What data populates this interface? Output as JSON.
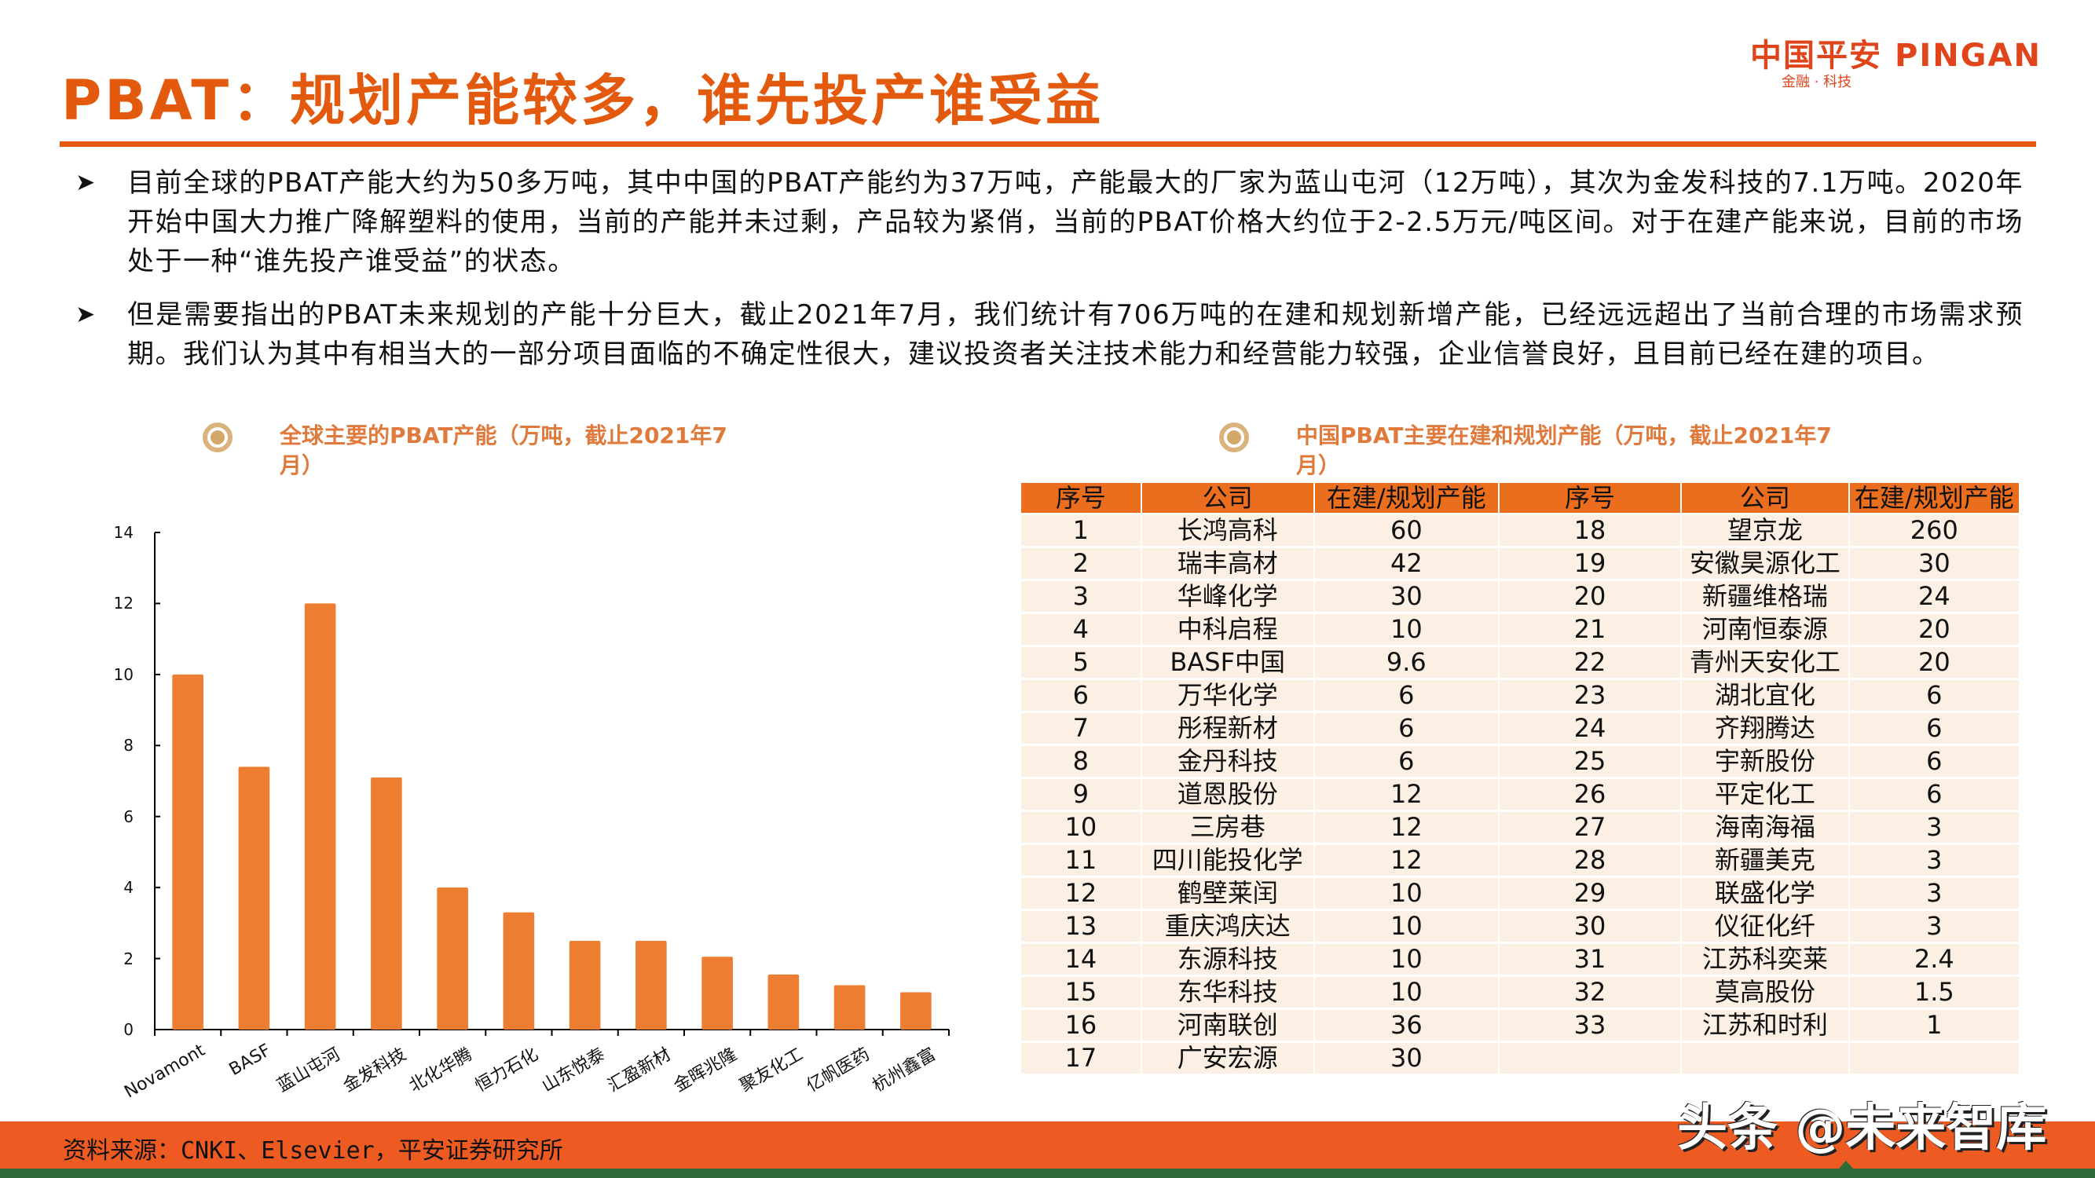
{
  "header": {
    "title": "PBAT：规划产能较多，谁先投产谁受益",
    "logo_cn": "中国平安",
    "logo_en": "PINGAN",
    "logo_sub": "金融 · 科技"
  },
  "bullets": [
    {
      "icon": "arrow-bullet-icon",
      "text": "目前全球的PBAT产能大约为50多万吨，其中中国的PBAT产能约为37万吨，产能最大的厂家为蓝山屯河（12万吨），其次为金发科技的7.1万吨。2020年开始中国大力推广降解塑料的使用，当前的产能并未过剩，产品较为紧俏，当前的PBAT价格大约位于2-2.5万元/吨区间。对于在建产能来说，目前的市场处于一种“谁先投产谁受益”的状态。"
    },
    {
      "icon": "arrow-bullet-icon",
      "text": "但是需要指出的PBAT未来规划的产能十分巨大，截止2021年7月，我们统计有706万吨的在建和规划新增产能，已经远远超出了当前合理的市场需求预期。我们认为其中有相当大的一部分项目面临的不确定性很大，建议投资者关注技术能力和经营能力较强，企业信誉良好，且目前已经在建的项目。"
    }
  ],
  "left_section": {
    "title_line1": "全球主要的PBAT产能（万吨，截止2021年7",
    "title_line2": "月）"
  },
  "right_section": {
    "title_line1": "中国PBAT主要在建和规划产能（万吨，截止2021年7",
    "title_line2": "月）"
  },
  "chart_data": [
    {
      "type": "bar",
      "title": "全球主要的PBAT产能（万吨，截止2021年7月）",
      "xlabel": "",
      "ylabel": "",
      "categories": [
        "Novamont",
        "BASF",
        "蓝山屯河",
        "金发科技",
        "北化华腾",
        "恒力石化",
        "山东悦泰",
        "汇盈新材",
        "金晖兆隆",
        "聚友化工",
        "亿帆医药",
        "杭州鑫富"
      ],
      "values": [
        10,
        7.4,
        12,
        7.1,
        4,
        3.3,
        2.5,
        2.5,
        2.05,
        1.55,
        1.25,
        1.05
      ],
      "yticks": [
        0,
        2,
        4,
        6,
        8,
        10,
        12,
        14
      ],
      "ylim": [
        0,
        14
      ],
      "grid": false,
      "legend": "none",
      "color": "#ED7D31"
    },
    {
      "type": "table",
      "title": "中国PBAT主要在建和规划产能（万吨，截止2021年7月）",
      "columns": [
        "序号",
        "公司",
        "在建/规划产能",
        "序号",
        "公司",
        "在建/规划产能"
      ],
      "rows": [
        [
          "1",
          "长鸿高科",
          "60",
          "18",
          "望京龙",
          "260"
        ],
        [
          "2",
          "瑞丰高材",
          "42",
          "19",
          "安徽昊源化工",
          "30"
        ],
        [
          "3",
          "华峰化学",
          "30",
          "20",
          "新疆维格瑞",
          "24"
        ],
        [
          "4",
          "中科启程",
          "10",
          "21",
          "河南恒泰源",
          "20"
        ],
        [
          "5",
          "BASF中国",
          "9.6",
          "22",
          "青州天安化工",
          "20"
        ],
        [
          "6",
          "万华化学",
          "6",
          "23",
          "湖北宜化",
          "6"
        ],
        [
          "7",
          "彤程新材",
          "6",
          "24",
          "齐翔腾达",
          "6"
        ],
        [
          "8",
          "金丹科技",
          "6",
          "25",
          "宇新股份",
          "6"
        ],
        [
          "9",
          "道恩股份",
          "12",
          "26",
          "平定化工",
          "6"
        ],
        [
          "10",
          "三房巷",
          "12",
          "27",
          "海南海福",
          "3"
        ],
        [
          "11",
          "四川能投化学",
          "12",
          "28",
          "新疆美克",
          "3"
        ],
        [
          "12",
          "鹤壁莱闰",
          "10",
          "29",
          "联盛化学",
          "3"
        ],
        [
          "13",
          "重庆鸿庆达",
          "10",
          "30",
          "仪征化纤",
          "3"
        ],
        [
          "14",
          "东源科技",
          "10",
          "31",
          "江苏科奕莱",
          "2.4"
        ],
        [
          "15",
          "东华科技",
          "10",
          "32",
          "莫高股份",
          "1.5"
        ],
        [
          "16",
          "河南联创",
          "36",
          "33",
          "江苏和时利",
          "1"
        ],
        [
          "17",
          "广安宏源",
          "30",
          "",
          "",
          ""
        ]
      ]
    }
  ],
  "footer": {
    "source": "资料来源：CNKI、Elsevier，平安证券研究所",
    "watermark": "头条 @未来智库"
  },
  "colors": {
    "accent": "#E35A0E",
    "bar": "#ED7D31",
    "table_header": "#EB6E1E",
    "table_cell": "#FCF0E4",
    "footer": "#EE5B22",
    "footer_green": "#2E6B38",
    "section_title": "#E07A3C"
  }
}
